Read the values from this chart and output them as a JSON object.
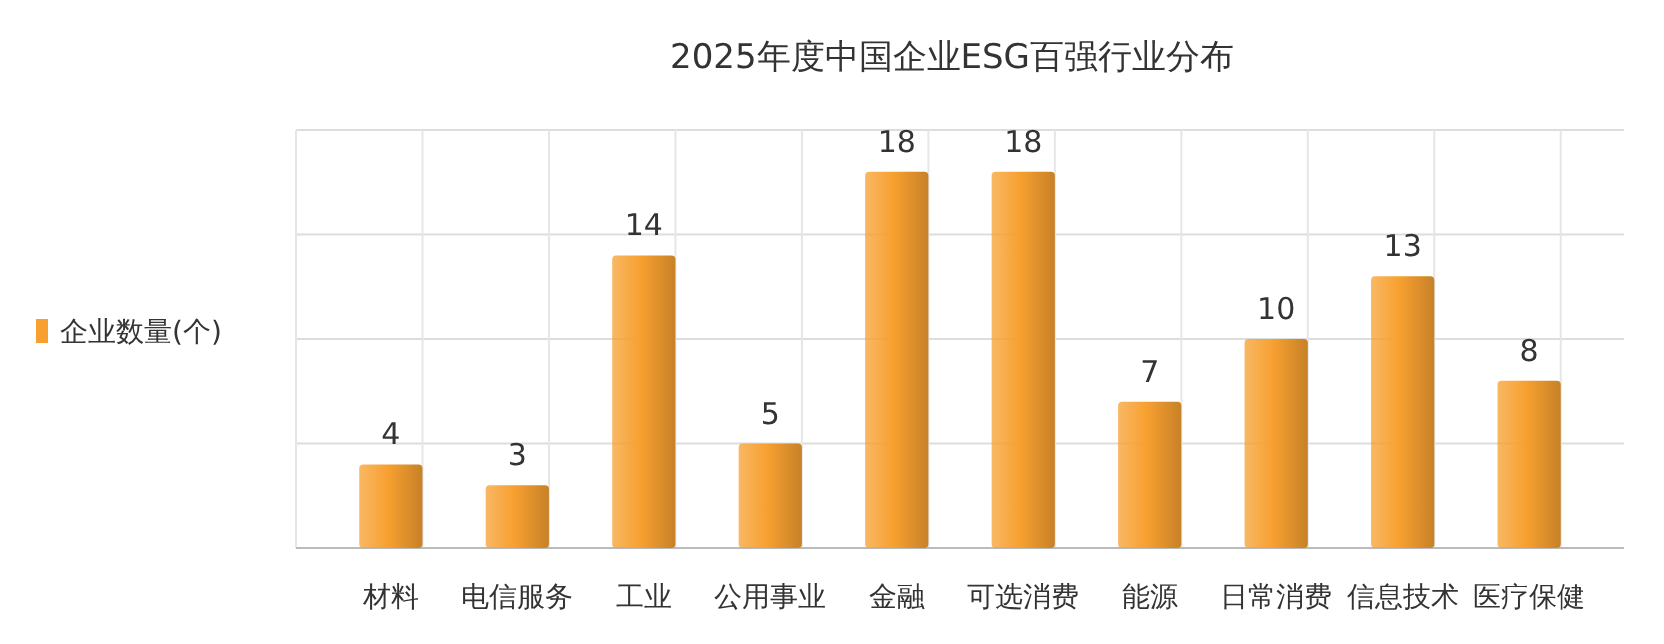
{
  "chart_data": {
    "type": "bar",
    "title": "2025年度中国企业ESG百强行业分布",
    "categories": [
      "材料",
      "电信服务",
      "工业",
      "公用事业",
      "金融",
      "可选消费",
      "能源",
      "日常消费",
      "信息技术",
      "医疗保健"
    ],
    "series": [
      {
        "name": "企业数量(个)",
        "color": "#f7a030",
        "values": [
          4,
          3,
          14,
          5,
          18,
          18,
          7,
          10,
          13,
          8
        ]
      }
    ],
    "ylim": [
      0,
      20
    ],
    "yticks": [
      {
        "value": 0,
        "label": null
      },
      {
        "value": 5,
        "label": null
      },
      {
        "value": 10,
        "label": null
      },
      {
        "value": 15,
        "label": null
      },
      {
        "value": 20,
        "label": null
      }
    ],
    "tick_labels": "x",
    "grid": true,
    "legend": "left",
    "data_labels": true
  }
}
